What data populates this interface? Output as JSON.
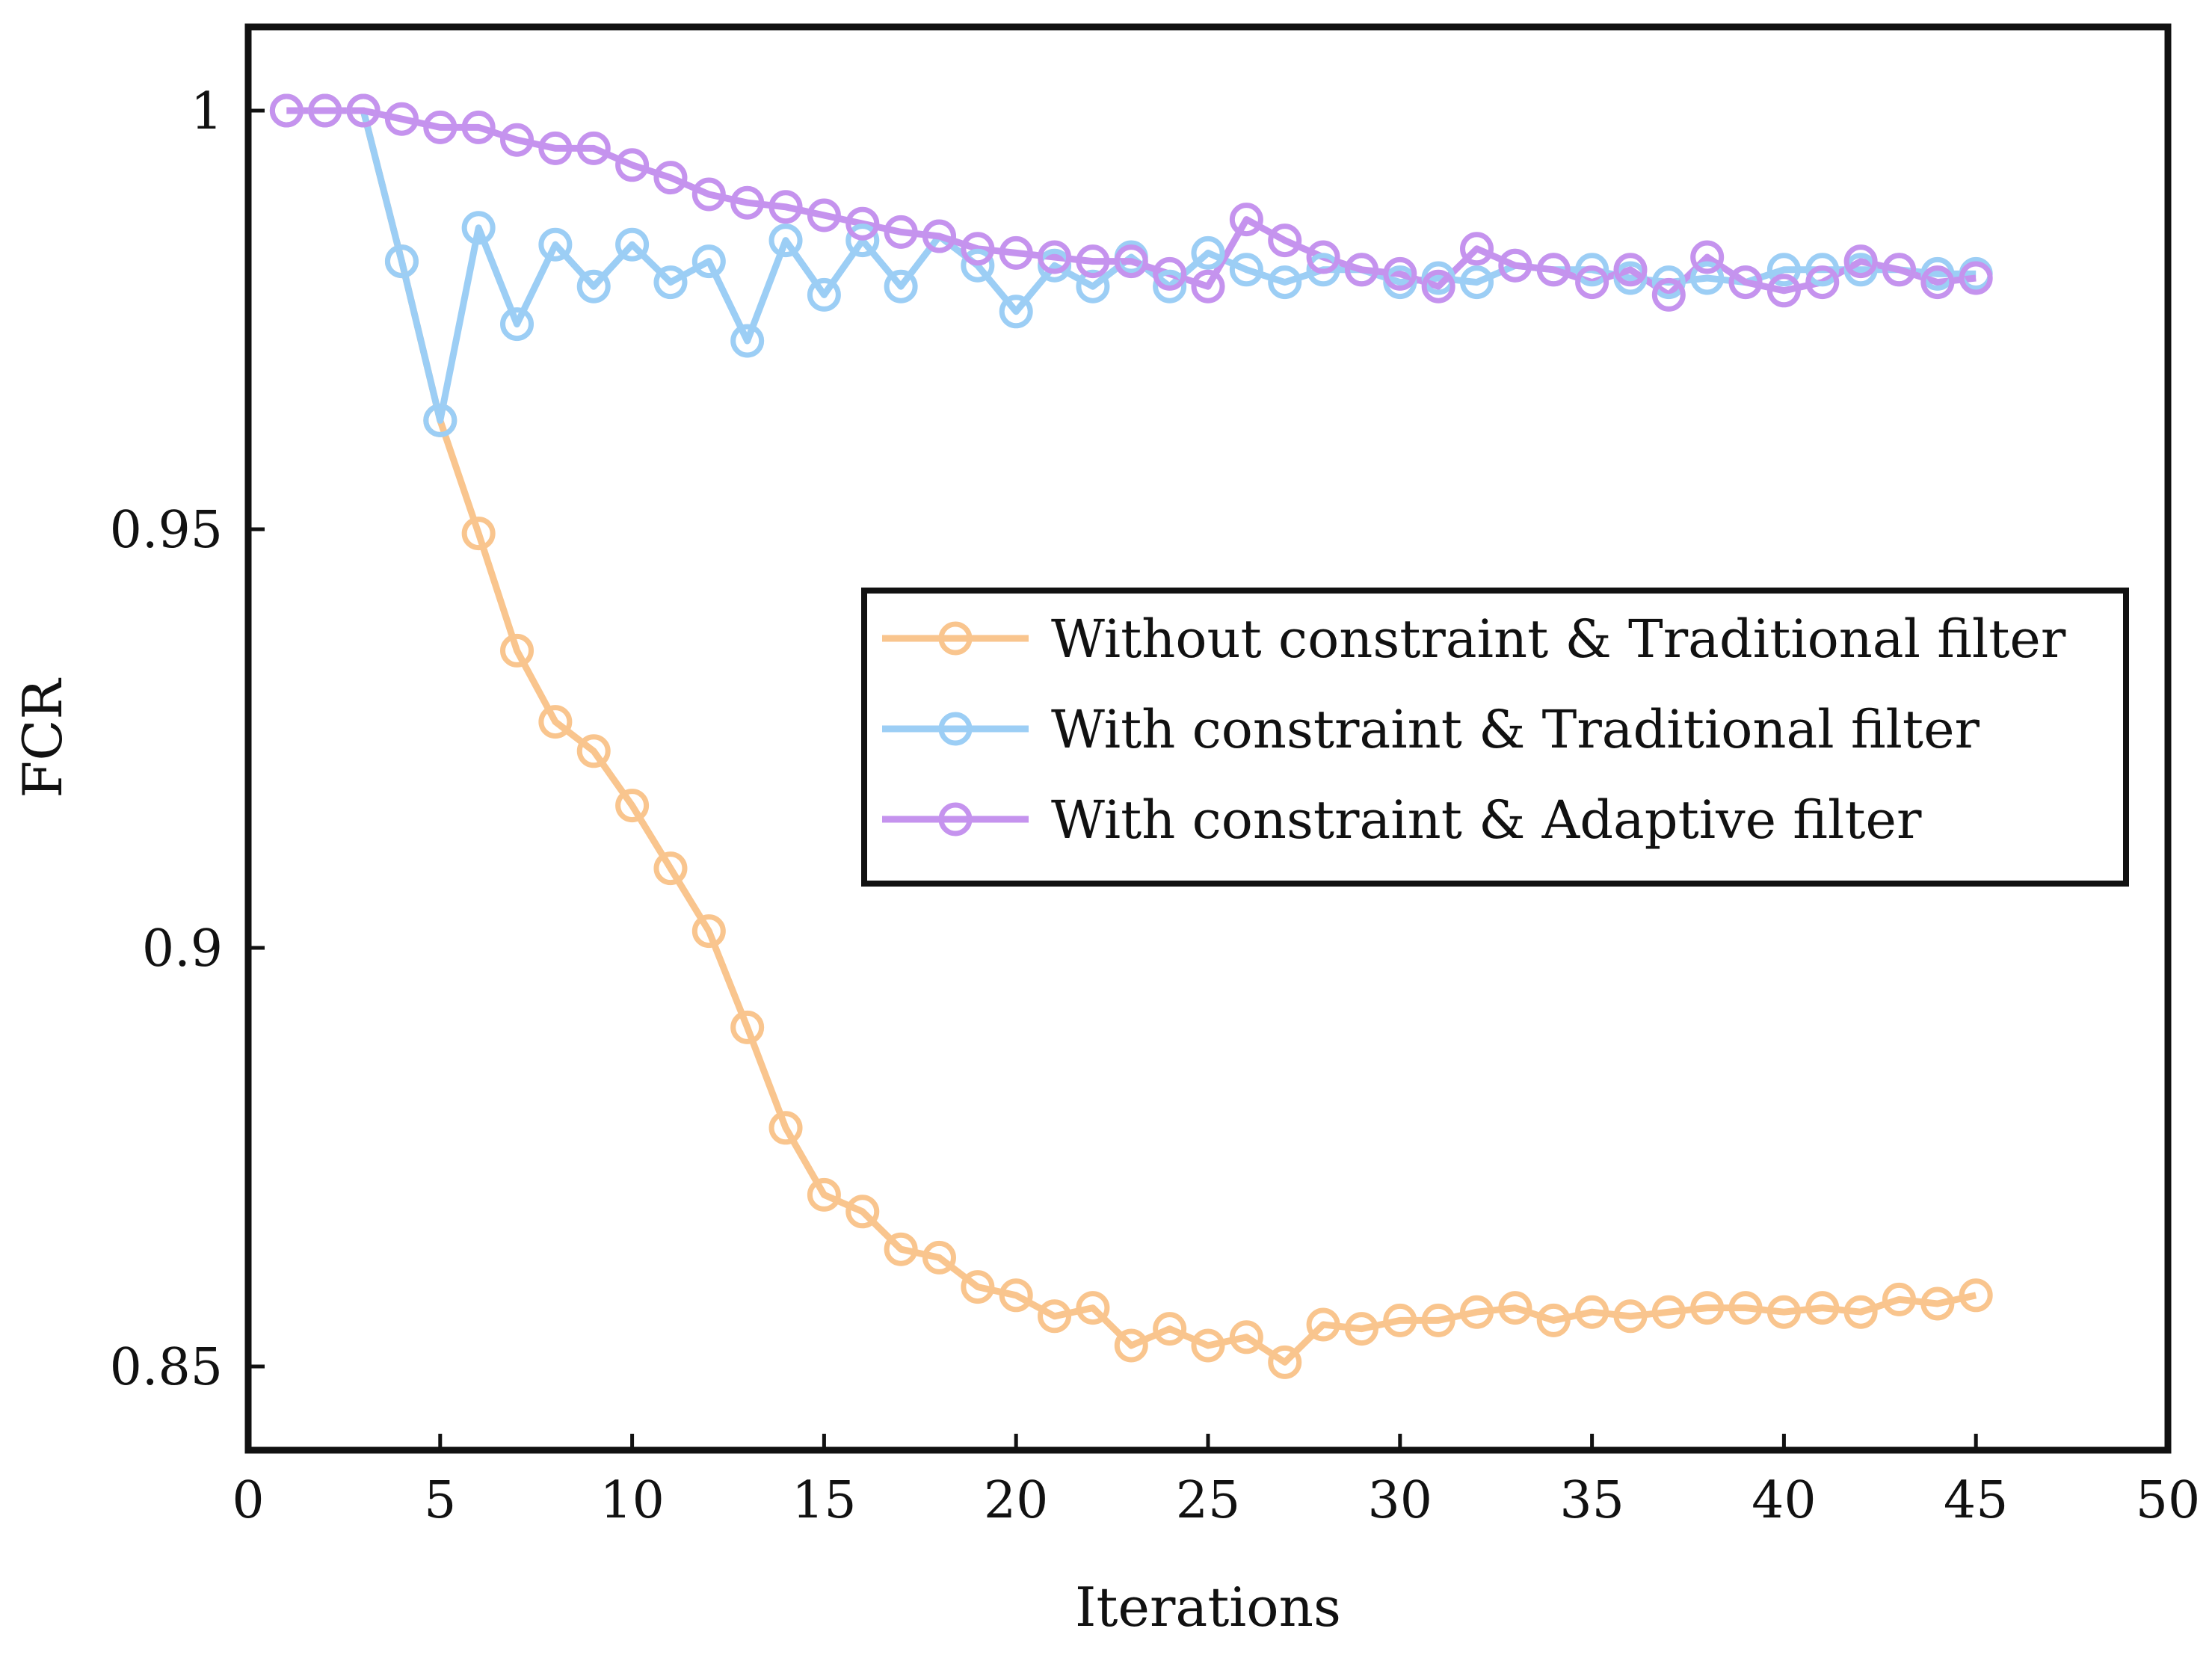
{
  "chart_data": {
    "type": "line",
    "title": "",
    "xlabel": "Iterations",
    "ylabel": "FCR",
    "xlim": [
      0,
      50
    ],
    "ylim": [
      0.84,
      1.01
    ],
    "xticks": [
      0,
      5,
      10,
      15,
      20,
      25,
      30,
      35,
      40,
      45,
      50
    ],
    "xtick_labels": [
      "0",
      "5",
      "10",
      "15",
      "20",
      "25",
      "30",
      "35",
      "40",
      "45",
      "50"
    ],
    "yticks": [
      0.85,
      0.9,
      0.95,
      1.0
    ],
    "ytick_labels": [
      "0.85",
      "0.9",
      "0.95",
      "1"
    ],
    "grid": false,
    "legend_position": "center-right",
    "x": [
      1,
      2,
      3,
      4,
      5,
      6,
      7,
      8,
      9,
      10,
      11,
      12,
      13,
      14,
      15,
      16,
      17,
      18,
      19,
      20,
      21,
      22,
      23,
      24,
      25,
      26,
      27,
      28,
      29,
      30,
      31,
      32,
      33,
      34,
      35,
      36,
      37,
      38,
      39,
      40,
      41,
      42,
      43,
      44,
      45
    ],
    "series": [
      {
        "name": "Without constraint & Traditional filter",
        "color": "#f9c58e",
        "values": [
          1.0,
          1.0,
          1.0,
          0.982,
          0.963,
          0.9495,
          0.9355,
          0.927,
          0.9235,
          0.917,
          0.9095,
          0.902,
          0.8905,
          0.8785,
          0.8705,
          0.8685,
          0.864,
          0.863,
          0.8595,
          0.8585,
          0.856,
          0.857,
          0.8525,
          0.8545,
          0.8525,
          0.8535,
          0.8505,
          0.855,
          0.8545,
          0.8555,
          0.8555,
          0.8565,
          0.857,
          0.8555,
          0.8565,
          0.856,
          0.8565,
          0.857,
          0.857,
          0.8565,
          0.857,
          0.8565,
          0.858,
          0.8575,
          0.8585
        ]
      },
      {
        "name": "With constraint & Traditional filter",
        "color": "#9ccef5",
        "values": [
          1.0,
          1.0,
          1.0,
          0.982,
          0.963,
          0.986,
          0.9745,
          0.984,
          0.979,
          0.984,
          0.9795,
          0.982,
          0.9725,
          0.9845,
          0.978,
          0.9845,
          0.979,
          0.985,
          0.9815,
          0.976,
          0.9815,
          0.979,
          0.9825,
          0.979,
          0.983,
          0.981,
          0.9795,
          0.981,
          0.981,
          0.9795,
          0.98,
          0.9795,
          0.9815,
          0.981,
          0.981,
          0.98,
          0.9795,
          0.98,
          0.9795,
          0.981,
          0.981,
          0.981,
          0.981,
          0.9805,
          0.9805
        ]
      },
      {
        "name": "With constraint & Adaptive filter",
        "color": "#c593ee",
        "values": [
          1.0,
          1.0,
          1.0,
          0.999,
          0.998,
          0.998,
          0.9965,
          0.9955,
          0.9955,
          0.9935,
          0.992,
          0.99,
          0.989,
          0.9885,
          0.9875,
          0.9865,
          0.9855,
          0.985,
          0.9835,
          0.983,
          0.9825,
          0.982,
          0.982,
          0.9805,
          0.979,
          0.987,
          0.9845,
          0.9825,
          0.981,
          0.9805,
          0.979,
          0.9835,
          0.9815,
          0.981,
          0.9795,
          0.981,
          0.978,
          0.9825,
          0.9795,
          0.9785,
          0.9795,
          0.982,
          0.981,
          0.9795,
          0.98
        ]
      }
    ]
  }
}
